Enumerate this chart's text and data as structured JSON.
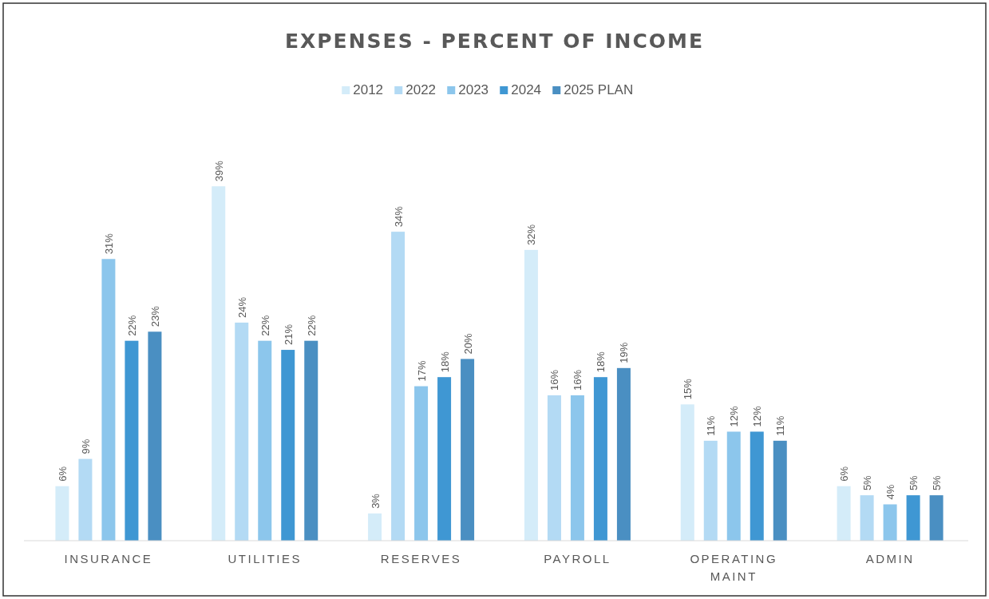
{
  "chart_data": {
    "type": "bar",
    "title": "EXPENSES - PERCENT OF INCOME",
    "categories": [
      "INSURANCE",
      "UTILITIES",
      "RESERVES",
      "PAYROLL",
      "OPERATING MAINT",
      "ADMIN"
    ],
    "series": [
      {
        "name": "2012",
        "color": "#d4ecf9",
        "values": [
          6,
          39,
          3,
          32,
          15,
          6
        ],
        "value_labels": [
          "6%",
          "39%",
          "3%",
          "32%",
          "15%",
          "6%"
        ]
      },
      {
        "name": "2022",
        "color": "#b3daf4",
        "values": [
          9,
          24,
          34,
          16,
          11,
          5
        ],
        "value_labels": [
          "9%",
          "24%",
          "34%",
          "16%",
          "11%",
          "5%"
        ]
      },
      {
        "name": "2023",
        "color": "#8cc6ec",
        "values": [
          31,
          22,
          17,
          16,
          12,
          4
        ],
        "value_labels": [
          "31%",
          "22%",
          "17%",
          "16%",
          "12%",
          "4%"
        ]
      },
      {
        "name": "2024",
        "color": "#3f97d3",
        "values": [
          22,
          21,
          18,
          18,
          12,
          5
        ],
        "value_labels": [
          "22%",
          "21%",
          "18%",
          "18%",
          "12%",
          "5%"
        ]
      },
      {
        "name": "2025 PLAN",
        "color": "#4a8fc2",
        "values": [
          23,
          22,
          20,
          19,
          11,
          5
        ],
        "value_labels": [
          "23%",
          "22%",
          "20%",
          "19%",
          "11%",
          "5%"
        ]
      }
    ],
    "relative": false,
    "legend": "top"
  }
}
